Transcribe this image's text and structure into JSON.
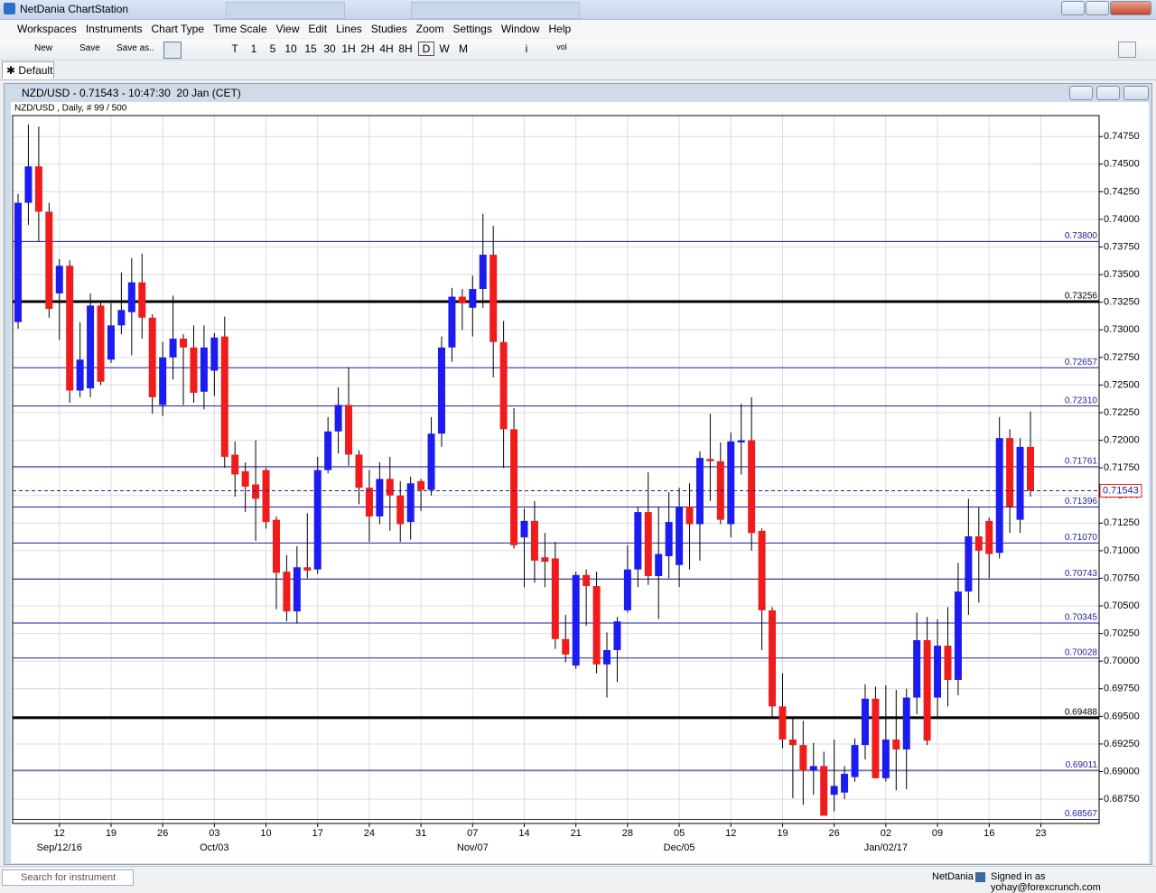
{
  "app_title": "NetDania ChartStation",
  "menu": [
    "Workspaces",
    "Instruments",
    "Chart Type",
    "Time Scale",
    "View",
    "Edit",
    "Lines",
    "Studies",
    "Zoom",
    "Settings",
    "Window",
    "Help"
  ],
  "toolbar": {
    "file_buttons": [
      "New",
      "Save",
      "Save as.."
    ],
    "timescales": [
      "T",
      "1",
      "5",
      "10",
      "15",
      "30",
      "1H",
      "2H",
      "4H",
      "8H",
      "D",
      "W",
      "M"
    ],
    "tools": [
      "i",
      "vol"
    ]
  },
  "tab": "Default",
  "window_title": "NZD/USD - 0.71543 - 10:47:30  20 Jan (CET)",
  "status": {
    "search": "Search for instrument",
    "brand": "NetDania",
    "user": "Signed in as yohay@forexcrunch.com"
  },
  "chart_data": {
    "type": "candlestick",
    "subtitle": "NZD/USD , Daily, # 99 / 500",
    "up_color": "#1c1cf0",
    "down_color": "#f01c1c",
    "categories": [
      null,
      null,
      null,
      null,
      "12",
      null,
      null,
      null,
      null,
      "19",
      null,
      null,
      null,
      null,
      "26",
      null,
      null,
      null,
      null,
      "03",
      null,
      null,
      null,
      null,
      "10",
      null,
      null,
      null,
      null,
      "17",
      null,
      null,
      null,
      null,
      "24",
      null,
      null,
      null,
      null,
      "31",
      null,
      null,
      null,
      null,
      "07",
      null,
      null,
      null,
      null,
      "14",
      null,
      null,
      null,
      null,
      "21",
      null,
      null,
      null,
      null,
      "28",
      null,
      null,
      null,
      null,
      "05",
      null,
      null,
      null,
      null,
      "12",
      null,
      null,
      null,
      null,
      "19",
      null,
      null,
      null,
      null,
      "26",
      null,
      null,
      null,
      null,
      "02",
      null,
      null,
      null,
      null,
      "09",
      null,
      null,
      null,
      null,
      "16",
      null,
      null,
      null,
      null,
      "23"
    ],
    "period_labels": [
      null,
      null,
      null,
      null,
      "Sep/12/16",
      null,
      null,
      null,
      null,
      null,
      null,
      null,
      null,
      null,
      null,
      null,
      null,
      null,
      null,
      "Oct/03",
      null,
      null,
      null,
      null,
      null,
      null,
      null,
      null,
      null,
      null,
      null,
      null,
      null,
      null,
      null,
      null,
      null,
      null,
      null,
      null,
      null,
      null,
      null,
      null,
      "Nov/07",
      null,
      null,
      null,
      null,
      null,
      null,
      null,
      null,
      null,
      null,
      null,
      null,
      null,
      null,
      null,
      null,
      null,
      null,
      null,
      "Dec/05",
      null,
      null,
      null,
      null,
      null,
      null,
      null,
      null,
      null,
      null,
      null,
      null,
      null,
      null,
      null,
      null,
      null,
      null,
      null,
      "Jan/02/17",
      null,
      null,
      null,
      null,
      null,
      null,
      null,
      null,
      null,
      null,
      null,
      null,
      null,
      null,
      null
    ],
    "open": [
      0.7307,
      0.7415,
      0.7448,
      0.7407,
      0.7333,
      0.7358,
      0.7245,
      0.7247,
      0.7322,
      0.7273,
      0.7304,
      0.7316,
      0.7343,
      0.7311,
      0.7232,
      0.7275,
      0.7292,
      0.7284,
      0.7244,
      0.7263,
      0.7294,
      0.7187,
      0.7172,
      0.716,
      0.7173,
      0.7128,
      0.7081,
      0.7045,
      0.7085,
      0.7083,
      0.7173,
      0.7208,
      0.7232,
      0.7187,
      0.7157,
      0.7131,
      0.7165,
      0.715,
      0.7126,
      0.7163,
      0.7155,
      0.7206,
      0.7284,
      0.733,
      0.732,
      0.7337,
      0.7368,
      0.7289,
      0.721,
      0.7112,
      0.7127,
      0.7094,
      0.7093,
      0.702,
      0.6996,
      0.7078,
      0.7068,
      0.6997,
      0.701,
      0.7046,
      0.7083,
      0.7135,
      0.7077,
      0.7095,
      0.7087,
      0.714,
      0.7124,
      0.7183,
      0.7181,
      0.7124,
      0.7198,
      0.72,
      0.7118,
      0.7046,
      0.6959,
      0.6929,
      0.6924,
      0.6901,
      0.6905,
      0.6879,
      0.6881,
      0.6895,
      0.6924,
      0.6966,
      0.6894,
      0.6929,
      0.692,
      0.6967,
      0.7019,
      0.6967,
      0.7014,
      0.6983,
      0.7063,
      0.7113,
      0.7127,
      0.7098,
      0.7202,
      0.7128,
      0.7194,
      null
    ],
    "high": [
      0.7423,
      0.7486,
      0.7484,
      0.7415,
      0.7364,
      0.7363,
      0.7307,
      0.7333,
      0.7326,
      0.7324,
      0.7352,
      0.7365,
      0.7369,
      0.7314,
      0.7289,
      0.7331,
      0.7296,
      0.7304,
      0.7304,
      0.7297,
      0.7312,
      0.7199,
      0.718,
      0.72,
      0.7175,
      0.7131,
      0.7096,
      0.7104,
      0.7134,
      0.7185,
      0.7221,
      0.7248,
      0.7266,
      0.7191,
      0.7173,
      0.718,
      0.7185,
      0.7163,
      0.7167,
      0.7165,
      0.7221,
      0.7294,
      0.7338,
      0.7337,
      0.7349,
      0.7405,
      0.7394,
      0.7308,
      0.7229,
      0.7138,
      0.7145,
      0.7116,
      0.7108,
      0.7042,
      0.7081,
      0.7083,
      0.7081,
      0.7026,
      0.704,
      0.7105,
      0.714,
      0.7171,
      0.714,
      0.7153,
      0.7157,
      0.7161,
      0.719,
      0.7224,
      0.7198,
      0.7207,
      0.7233,
      0.7239,
      0.712,
      0.7049,
      0.6989,
      0.6948,
      0.6946,
      0.6926,
      0.6918,
      0.6929,
      0.6905,
      0.693,
      0.6979,
      0.6977,
      0.6978,
      0.6974,
      0.6975,
      0.7044,
      0.704,
      0.7038,
      0.7049,
      0.7089,
      0.7147,
      0.7139,
      0.713,
      0.7221,
      0.721,
      0.7202,
      0.7226,
      null
    ],
    "low": [
      0.7301,
      0.7395,
      0.738,
      0.7311,
      0.7291,
      0.7234,
      0.7239,
      0.7239,
      0.725,
      0.727,
      0.7296,
      0.7277,
      0.7292,
      0.7224,
      0.7222,
      0.7255,
      0.7232,
      0.7234,
      0.7228,
      0.724,
      0.7175,
      0.7149,
      0.7135,
      0.7109,
      0.712,
      0.7047,
      0.7036,
      0.7034,
      0.7075,
      0.7079,
      0.717,
      0.7188,
      0.7177,
      0.7142,
      0.7108,
      0.7124,
      0.7118,
      0.7108,
      0.711,
      0.7136,
      0.715,
      0.7194,
      0.7271,
      0.73,
      0.7294,
      0.732,
      0.7257,
      0.7175,
      0.7102,
      0.7067,
      0.7071,
      0.7067,
      0.7011,
      0.6999,
      0.6993,
      0.7032,
      0.6989,
      0.6967,
      0.6981,
      0.7044,
      0.7067,
      0.7069,
      0.7038,
      0.7075,
      0.7067,
      0.7083,
      0.7091,
      0.7145,
      0.7124,
      0.7112,
      0.7169,
      0.71,
      0.701,
      0.6948,
      0.6921,
      0.6876,
      0.687,
      0.6879,
      0.686,
      0.6864,
      0.6875,
      0.6891,
      0.6911,
      0.6894,
      0.6891,
      0.6883,
      0.6884,
      0.6952,
      0.6924,
      0.6948,
      0.6959,
      0.6969,
      0.7042,
      0.7053,
      0.7075,
      0.7093,
      0.7116,
      0.7116,
      0.7149,
      null
    ],
    "close": [
      0.7415,
      0.7448,
      0.7407,
      0.7319,
      0.7358,
      0.7245,
      0.7273,
      0.7322,
      0.7253,
      0.7304,
      0.7318,
      0.7343,
      0.7311,
      0.7239,
      0.7275,
      0.7292,
      0.7284,
      0.7243,
      0.7284,
      0.7293,
      0.7185,
      0.7169,
      0.7158,
      0.7147,
      0.7126,
      0.708,
      0.7045,
      0.7085,
      0.7082,
      0.7173,
      0.7208,
      0.7232,
      0.7187,
      0.7157,
      0.7131,
      0.7165,
      0.715,
      0.7124,
      0.7161,
      0.7155,
      0.7206,
      0.7284,
      0.733,
      0.7324,
      0.7337,
      0.7368,
      0.7289,
      0.721,
      0.7105,
      0.7127,
      0.7091,
      0.709,
      0.702,
      0.7006,
      0.7078,
      0.7068,
      0.6997,
      0.701,
      0.7036,
      0.7083,
      0.7135,
      0.7077,
      0.7097,
      0.7126,
      0.714,
      0.7124,
      0.7184,
      0.7181,
      0.7128,
      0.7199,
      0.72,
      0.7116,
      0.7046,
      0.6959,
      0.6929,
      0.6924,
      0.6901,
      0.6905,
      0.686,
      0.6887,
      0.6898,
      0.6924,
      0.6966,
      0.6894,
      0.6929,
      0.692,
      0.6967,
      0.7019,
      0.6928,
      0.7014,
      0.6983,
      0.7063,
      0.7113,
      0.71,
      0.7097,
      0.7202,
      0.714,
      0.7194,
      0.71543,
      null
    ],
    "ylim": [
      0.6853,
      0.7494
    ],
    "yticks": [
      {
        "value": 0.6875,
        "label": "0.68750"
      },
      {
        "value": 0.69,
        "label": "0.69000"
      },
      {
        "value": 0.6925,
        "label": "0.69250"
      },
      {
        "value": 0.695,
        "label": "0.69500"
      },
      {
        "value": 0.6975,
        "label": "0.69750"
      },
      {
        "value": 0.7,
        "label": "0.70000"
      },
      {
        "value": 0.7025,
        "label": "0.70250"
      },
      {
        "value": 0.705,
        "label": "0.70500"
      },
      {
        "value": 0.7075,
        "label": "0.70750"
      },
      {
        "value": 0.71,
        "label": "0.71000"
      },
      {
        "value": 0.7125,
        "label": "0.71250"
      },
      {
        "value": 0.715,
        "label": "0.71500"
      },
      {
        "value": 0.7175,
        "label": "0.71750"
      },
      {
        "value": 0.72,
        "label": "0.72000"
      },
      {
        "value": 0.7225,
        "label": "0.72250"
      },
      {
        "value": 0.725,
        "label": "0.72500"
      },
      {
        "value": 0.7275,
        "label": "0.72750"
      },
      {
        "value": 0.73,
        "label": "0.73000"
      },
      {
        "value": 0.7325,
        "label": "0.73250"
      },
      {
        "value": 0.735,
        "label": "0.73500"
      },
      {
        "value": 0.7375,
        "label": "0.73750"
      },
      {
        "value": 0.74,
        "label": "0.74000"
      },
      {
        "value": 0.7425,
        "label": "0.74250"
      },
      {
        "value": 0.745,
        "label": "0.74500"
      },
      {
        "value": 0.7475,
        "label": "0.74750"
      }
    ],
    "grid": true,
    "levels": [
      {
        "value": 0.738,
        "label": "0.73800",
        "color": "#1e1e9c",
        "width": 1
      },
      {
        "value": 0.73256,
        "label": "0.73256",
        "color": "#000000",
        "width": 3
      },
      {
        "value": 0.72657,
        "label": "0.72657",
        "color": "#1e1e9c",
        "width": 1
      },
      {
        "value": 0.7231,
        "label": "0.72310",
        "color": "#1e1e9c",
        "width": 1
      },
      {
        "value": 0.71761,
        "label": "0.71761",
        "color": "#1e1e9c",
        "width": 1
      },
      {
        "value": 0.71396,
        "label": "0.71396",
        "color": "#1e1e9c",
        "width": 1
      },
      {
        "value": 0.7107,
        "label": "0.71070",
        "color": "#1e1e9c",
        "width": 1
      },
      {
        "value": 0.70743,
        "label": "0.70743",
        "color": "#1e1e9c",
        "width": 1
      },
      {
        "value": 0.70345,
        "label": "0.70345",
        "color": "#1e1e9c",
        "width": 1
      },
      {
        "value": 0.70028,
        "label": "0.70028",
        "color": "#1e1e9c",
        "width": 1
      },
      {
        "value": 0.69488,
        "label": "0.69488",
        "color": "#000000",
        "width": 3
      },
      {
        "value": 0.69011,
        "label": "0.69011",
        "color": "#1e1e9c",
        "width": 1
      },
      {
        "value": 0.68567,
        "label": "0.68567",
        "color": "#1e1e9c",
        "width": 1
      }
    ],
    "last_price": {
      "value": 0.71543,
      "label": "0.71543",
      "color": "#e02020"
    }
  }
}
